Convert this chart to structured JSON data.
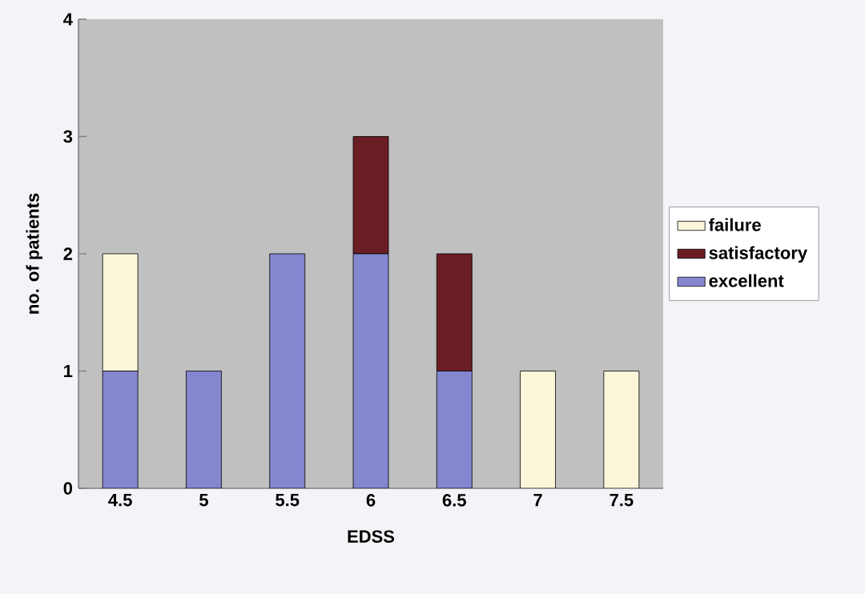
{
  "chart_data": {
    "type": "bar",
    "stacked": true,
    "xlabel": "EDSS",
    "ylabel": "no. of patients",
    "categories": [
      "4.5",
      "5",
      "5.5",
      "6",
      "6.5",
      "7",
      "7.5"
    ],
    "series": [
      {
        "name": "excellent",
        "color": "#8486cf",
        "values": [
          1,
          1,
          2,
          2,
          1,
          0,
          0
        ]
      },
      {
        "name": "satisfactory",
        "color": "#6b1d24",
        "values": [
          0,
          0,
          0,
          1,
          1,
          0,
          0
        ]
      },
      {
        "name": "failure",
        "color": "#fcf6da",
        "values": [
          1,
          0,
          0,
          0,
          0,
          1,
          1
        ]
      }
    ],
    "ylim": [
      0,
      4
    ],
    "yticks": [
      0,
      1,
      2,
      3,
      4
    ],
    "grid": false,
    "legend": "right"
  }
}
